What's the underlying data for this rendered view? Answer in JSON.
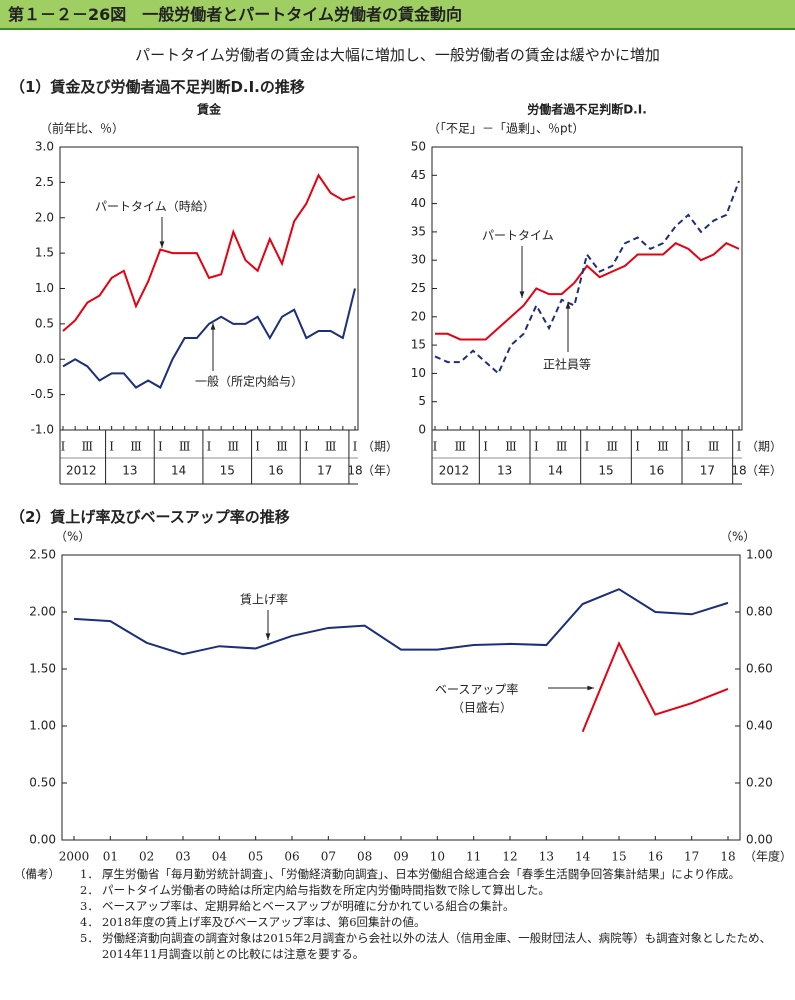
{
  "header": {
    "title": "第１－２－26図　一般労働者とパートタイム労働者の賃金動向",
    "subtitle": "パートタイム労働者の賃金は大幅に増加し、一般労働者の賃金は緩やかに増加",
    "section1": "（1）賃金及び労働者過不足判断D.I.の推移",
    "section2": "（2）賃上げ率及びベースアップ率の推移"
  },
  "chart_data": [
    {
      "type": "line",
      "title": "賃金",
      "ylabel": "（前年比、％）",
      "x_unit": "（期）",
      "year_unit": "（年）",
      "categories": [
        "Ⅰ",
        null,
        "Ⅲ",
        null,
        "Ⅰ",
        null,
        "Ⅲ",
        null,
        "Ⅰ",
        null,
        "Ⅲ",
        null,
        "Ⅰ",
        null,
        "Ⅲ",
        null,
        "Ⅰ",
        null,
        "Ⅲ",
        null,
        "Ⅰ",
        null,
        "Ⅲ",
        null,
        "Ⅰ"
      ],
      "year_labels": [
        "2012",
        "13",
        "14",
        "15",
        "16",
        "17",
        "18"
      ],
      "ylim": [
        -1,
        3
      ],
      "yticks": [
        {
          "value": -1,
          "label": "-1.0"
        },
        -0.5,
        {
          "value": 0,
          "label": "0.0"
        },
        0.5,
        {
          "value": 1,
          "label": "1.0"
        },
        1.5,
        {
          "value": 2,
          "label": "2.0"
        },
        2.5,
        {
          "value": 3,
          "label": "3.0"
        }
      ],
      "series": [
        {
          "name": "パートタイム（時給）",
          "color": "#e60012",
          "values": [
            0.4,
            0.55,
            0.8,
            0.9,
            1.15,
            1.25,
            0.75,
            1.1,
            1.55,
            1.5,
            1.5,
            1.5,
            1.15,
            1.2,
            1.8,
            1.4,
            1.25,
            1.7,
            1.35,
            1.95,
            2.2,
            2.6,
            2.35,
            2.25,
            2.3
          ]
        },
        {
          "name": "一般（所定内給与）",
          "color": "#1d2e7a",
          "values": [
            -0.1,
            0.0,
            -0.1,
            -0.3,
            -0.2,
            -0.2,
            -0.4,
            -0.3,
            -0.4,
            0.0,
            0.3,
            0.3,
            0.5,
            0.6,
            0.5,
            0.5,
            0.6,
            0.3,
            0.6,
            0.7,
            0.3,
            0.4,
            0.4,
            0.3,
            1.0
          ]
        }
      ]
    },
    {
      "type": "line",
      "title": "労働者過不足判断D.I.",
      "ylabel": "（「不足」－「過剰」、％pt）",
      "x_unit": "（期）",
      "year_unit": "（年）",
      "categories": [
        "Ⅰ",
        null,
        "Ⅲ",
        null,
        "Ⅰ",
        null,
        "Ⅲ",
        null,
        "Ⅰ",
        null,
        "Ⅲ",
        null,
        "Ⅰ",
        null,
        "Ⅲ",
        null,
        "Ⅰ",
        null,
        "Ⅲ",
        null,
        "Ⅰ",
        null,
        "Ⅲ",
        null,
        "Ⅰ"
      ],
      "year_labels": [
        "2012",
        "13",
        "14",
        "15",
        "16",
        "17",
        "18"
      ],
      "ylim": [
        0,
        50
      ],
      "yticks": [
        0,
        5,
        10,
        15,
        20,
        25,
        30,
        35,
        40,
        45,
        50
      ],
      "series": [
        {
          "name": "パートタイム",
          "color": "#e60012",
          "values": [
            17,
            17,
            16,
            16,
            16,
            18,
            20,
            22,
            25,
            24,
            24,
            26,
            29,
            27,
            28,
            29,
            31,
            31,
            31,
            33,
            32,
            30,
            31,
            33,
            32
          ]
        },
        {
          "name": "正社員等",
          "color": "#1d2e7a",
          "dashed": true,
          "values": [
            13,
            12,
            12,
            14,
            12,
            10,
            15,
            17,
            22,
            18,
            23,
            22,
            31,
            28,
            29,
            33,
            34,
            32,
            33,
            36,
            38,
            35,
            37,
            38,
            44
          ]
        }
      ]
    },
    {
      "type": "line",
      "ylabel": "（%）",
      "y2label": "（%）",
      "x_unit": "（年度）",
      "categories": [
        "2000",
        "01",
        "02",
        "03",
        "04",
        "05",
        "06",
        "07",
        "08",
        "09",
        "10",
        "11",
        "12",
        "13",
        "14",
        "15",
        "16",
        "17",
        "18"
      ],
      "ylim": [
        0,
        2.5
      ],
      "yticks": [
        {
          "value": 0,
          "label": "0.00"
        },
        {
          "value": 0.5,
          "label": "0.50"
        },
        {
          "value": 1,
          "label": "1.00"
        },
        {
          "value": 1.5,
          "label": "1.50"
        },
        {
          "value": 2,
          "label": "2.00"
        },
        {
          "value": 2.5,
          "label": "2.50"
        }
      ],
      "y2lim": [
        0,
        1
      ],
      "y2ticks": [
        {
          "value": 0,
          "label": "0.00"
        },
        {
          "value": 0.2,
          "label": "0.20"
        },
        {
          "value": 0.4,
          "label": "0.40"
        },
        {
          "value": 0.6,
          "label": "0.60"
        },
        {
          "value": 0.8,
          "label": "0.80"
        },
        {
          "value": 1,
          "label": "1.00"
        }
      ],
      "annotation": "（目盛右）",
      "series": [
        {
          "name": "賃上げ率",
          "color": "#1d2e7a",
          "values": [
            1.94,
            1.92,
            1.73,
            1.63,
            1.7,
            1.68,
            1.79,
            1.86,
            1.88,
            1.67,
            1.67,
            1.71,
            1.72,
            1.71,
            2.07,
            2.2,
            2.0,
            1.98,
            2.08
          ]
        },
        {
          "name": "ベースアップ率",
          "color": "#e60012",
          "axis": "y2",
          "values": [
            null,
            null,
            null,
            null,
            null,
            null,
            null,
            null,
            null,
            null,
            null,
            null,
            null,
            null,
            0.38,
            0.69,
            0.44,
            0.48,
            0.53
          ]
        }
      ]
    }
  ],
  "notes": {
    "label": "（備考）",
    "items": [
      {
        "num": "1．",
        "text": "厚生労働省「毎月勤労統計調査」、「労働経済動向調査」、日本労働組合総連合会「春季生活闘争回答集計結果」により作成。"
      },
      {
        "num": "2．",
        "text": "パートタイム労働者の時給は所定内給与指数を所定内労働時間指数で除して算出した。"
      },
      {
        "num": "3．",
        "text": "ベースアップ率は、定期昇給とベースアップが明確に分かれている組合の集計。"
      },
      {
        "num": "4．",
        "text": "2018年度の賃上げ率及びベースアップ率は、第6回集計の値。"
      },
      {
        "num": "5．",
        "text": "労働経済動向調査の調査対象は2015年2月調査から会社以外の法人（信用金庫、一般財団法人、病院等）も調査対象としたため、2014年11月調査以前との比較には注意を要する。"
      }
    ]
  }
}
